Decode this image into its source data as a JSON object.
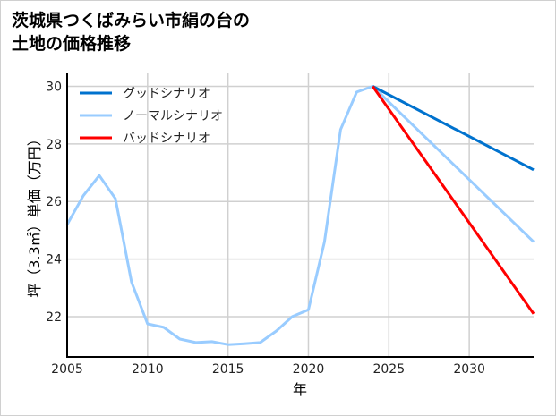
{
  "chart_data": {
    "type": "line",
    "title_lines": [
      "茨城県つくばみらい市絹の台の",
      "土地の価格推移"
    ],
    "xlabel": "年",
    "ylabel": "坪（3.3㎡）単価（万円）",
    "xlim": [
      2005,
      2034
    ],
    "ylim": [
      20.6,
      30.45
    ],
    "xticks": [
      2005,
      2010,
      2015,
      2020,
      2025,
      2030
    ],
    "yticks": [
      22,
      24,
      26,
      28,
      30
    ],
    "grid": true,
    "legend_position": "top-left",
    "series": [
      {
        "name": "グッドシナリオ",
        "color": "#0072CE",
        "x": [
          2024,
          2034
        ],
        "y": [
          30.0,
          27.1
        ]
      },
      {
        "name": "ノーマルシナリオ",
        "color": "#99CCFF",
        "x": [
          2005,
          2006,
          2007,
          2008,
          2009,
          2010,
          2011,
          2012,
          2013,
          2014,
          2015,
          2016,
          2017,
          2018,
          2019,
          2020,
          2021,
          2022,
          2023,
          2024,
          2034
        ],
        "y": [
          25.2,
          26.2,
          26.9,
          26.1,
          23.2,
          21.75,
          21.63,
          21.22,
          21.1,
          21.13,
          21.03,
          21.06,
          21.1,
          21.5,
          22.0,
          22.24,
          24.6,
          28.5,
          29.8,
          30.0,
          24.6
        ]
      },
      {
        "name": "バッドシナリオ",
        "color": "#FF0000",
        "x": [
          2024,
          2034
        ],
        "y": [
          30.0,
          22.1
        ]
      }
    ]
  }
}
